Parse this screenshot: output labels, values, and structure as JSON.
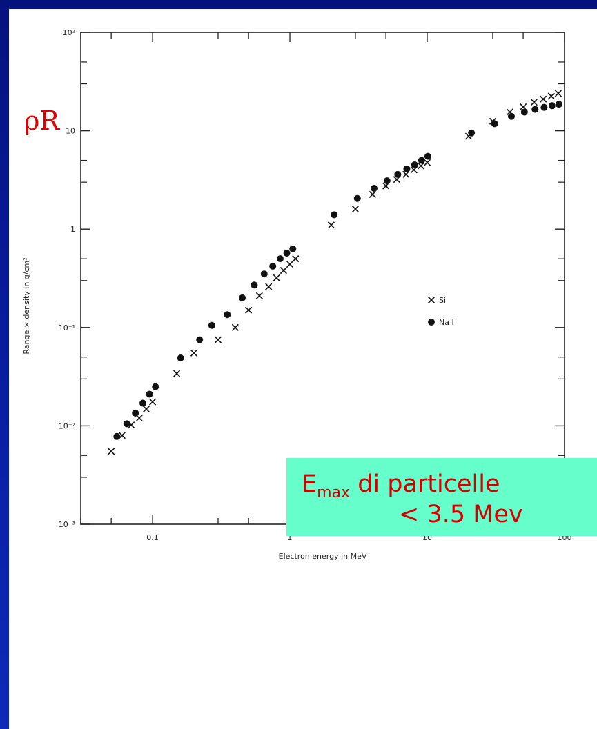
{
  "annotations": {
    "rho_r": "ρR",
    "callout": {
      "e_letter": "E",
      "e_subscript": "max",
      "rest": " di particelle",
      "second_line": "< 3.5 Mev"
    }
  },
  "colors": {
    "slide_background": "#0a1fa6",
    "annotation_red": "#e00000",
    "callout_background": "#66ffcc"
  },
  "chart_data": {
    "type": "scatter",
    "xscale": "log",
    "yscale": "log",
    "xlim": [
      0.03,
      100
    ],
    "ylim": [
      0.001,
      100
    ],
    "xlabel": "Electron energy in MeV",
    "ylabel": "Range × density in g/cm²",
    "x_tick_labels": [
      {
        "value": 0.1,
        "label": "0.1"
      },
      {
        "value": 1,
        "label": "1"
      },
      {
        "value": 10,
        "label": "10"
      },
      {
        "value": 100,
        "label": "100"
      }
    ],
    "y_tick_labels": [
      {
        "value": 0.001,
        "label": "10⁻³"
      },
      {
        "value": 0.01,
        "label": "10⁻²"
      },
      {
        "value": 0.1,
        "label": "10⁻¹"
      },
      {
        "value": 1,
        "label": "1"
      },
      {
        "value": 10,
        "label": "10"
      },
      {
        "value": 100,
        "label": "10²"
      }
    ],
    "legend": {
      "position": "center-right"
    },
    "series": [
      {
        "name": "Si",
        "marker": "x",
        "points": [
          {
            "x": 0.05,
            "y": 0.0055
          },
          {
            "x": 0.06,
            "y": 0.008
          },
          {
            "x": 0.07,
            "y": 0.0102
          },
          {
            "x": 0.08,
            "y": 0.012
          },
          {
            "x": 0.09,
            "y": 0.0148
          },
          {
            "x": 0.1,
            "y": 0.0175
          },
          {
            "x": 0.15,
            "y": 0.034
          },
          {
            "x": 0.2,
            "y": 0.055
          },
          {
            "x": 0.3,
            "y": 0.075
          },
          {
            "x": 0.4,
            "y": 0.1
          },
          {
            "x": 0.5,
            "y": 0.15
          },
          {
            "x": 0.6,
            "y": 0.21
          },
          {
            "x": 0.7,
            "y": 0.26
          },
          {
            "x": 0.8,
            "y": 0.32
          },
          {
            "x": 0.9,
            "y": 0.38
          },
          {
            "x": 1.0,
            "y": 0.44
          },
          {
            "x": 1.1,
            "y": 0.5
          },
          {
            "x": 2.0,
            "y": 1.1
          },
          {
            "x": 3.0,
            "y": 1.6
          },
          {
            "x": 4.0,
            "y": 2.25
          },
          {
            "x": 5.0,
            "y": 2.75
          },
          {
            "x": 6.0,
            "y": 3.2
          },
          {
            "x": 7.0,
            "y": 3.6
          },
          {
            "x": 8.0,
            "y": 4.0
          },
          {
            "x": 9.0,
            "y": 4.4
          },
          {
            "x": 10.0,
            "y": 4.75
          },
          {
            "x": 20.0,
            "y": 8.8
          },
          {
            "x": 30.0,
            "y": 12.5
          },
          {
            "x": 40.0,
            "y": 15.5
          },
          {
            "x": 50.0,
            "y": 17.5
          },
          {
            "x": 60.0,
            "y": 19.5
          },
          {
            "x": 70.0,
            "y": 21.0
          },
          {
            "x": 80.0,
            "y": 22.5
          },
          {
            "x": 90.0,
            "y": 24.0
          }
        ]
      },
      {
        "name": "Na I",
        "marker": "dot",
        "points": [
          {
            "x": 0.055,
            "y": 0.0078
          },
          {
            "x": 0.065,
            "y": 0.0105
          },
          {
            "x": 0.075,
            "y": 0.0135
          },
          {
            "x": 0.085,
            "y": 0.017
          },
          {
            "x": 0.095,
            "y": 0.021
          },
          {
            "x": 0.105,
            "y": 0.025
          },
          {
            "x": 0.16,
            "y": 0.049
          },
          {
            "x": 0.22,
            "y": 0.075
          },
          {
            "x": 0.27,
            "y": 0.105
          },
          {
            "x": 0.35,
            "y": 0.135
          },
          {
            "x": 0.45,
            "y": 0.2
          },
          {
            "x": 0.55,
            "y": 0.27
          },
          {
            "x": 0.65,
            "y": 0.35
          },
          {
            "x": 0.75,
            "y": 0.42
          },
          {
            "x": 0.85,
            "y": 0.5
          },
          {
            "x": 0.95,
            "y": 0.57
          },
          {
            "x": 1.05,
            "y": 0.63
          },
          {
            "x": 2.1,
            "y": 1.4
          },
          {
            "x": 3.1,
            "y": 2.05
          },
          {
            "x": 4.1,
            "y": 2.6
          },
          {
            "x": 5.1,
            "y": 3.1
          },
          {
            "x": 6.1,
            "y": 3.6
          },
          {
            "x": 7.1,
            "y": 4.1
          },
          {
            "x": 8.1,
            "y": 4.5
          },
          {
            "x": 9.1,
            "y": 5.0
          },
          {
            "x": 10.1,
            "y": 5.5
          },
          {
            "x": 21.0,
            "y": 9.5
          },
          {
            "x": 31.0,
            "y": 11.8
          },
          {
            "x": 41.0,
            "y": 14.0
          },
          {
            "x": 51.0,
            "y": 15.5
          },
          {
            "x": 61.0,
            "y": 16.5
          },
          {
            "x": 71.0,
            "y": 17.3
          },
          {
            "x": 81.0,
            "y": 18.0
          },
          {
            "x": 91.0,
            "y": 18.6
          }
        ]
      }
    ]
  }
}
